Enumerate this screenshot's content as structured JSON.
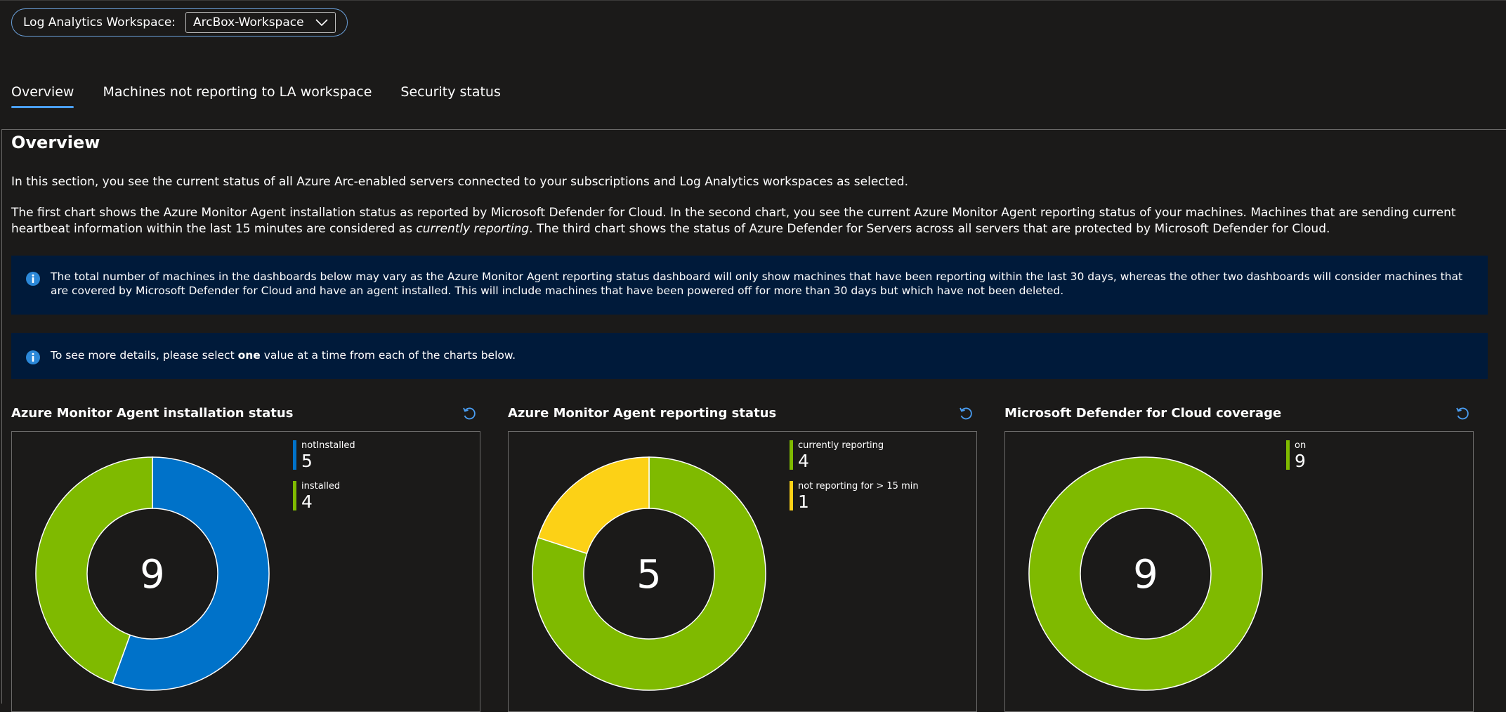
{
  "workspace": {
    "label": "Log Analytics Workspace:",
    "selected": "ArcBox-Workspace"
  },
  "tabs": [
    {
      "label": "Overview",
      "active": true
    },
    {
      "label": "Machines not reporting to LA workspace",
      "active": false
    },
    {
      "label": "Security status",
      "active": false
    }
  ],
  "overview": {
    "heading": "Overview",
    "para1": "In this section, you see the current status of all Azure Arc-enabled servers connected to your subscriptions and Log Analytics workspaces as selected.",
    "para2_part1": "The first chart shows the Azure Monitor Agent installation status as reported by Microsoft Defender for Cloud. In the second chart, you see the current Azure Monitor Agent reporting status of your machines. Machines that are sending current heartbeat information within the last 15 minutes are considered as ",
    "para2_em": "currently reporting",
    "para2_part2": ". The third chart shows the status of Azure Defender for Servers across all servers that are protected by Microsoft Defender for Cloud.",
    "info1": "The total number of machines in the dashboards below may vary as the Azure Monitor Agent reporting status dashboard will only show machines that have been reporting within the last 30 days, whereas the other two dashboards will consider machines that are covered by Microsoft Defender for Cloud and have an agent installed. This will include machines that have been powered off for more than 30 days but which have not been deleted.",
    "info2_part1": "To see more details, please select ",
    "info2_bold": "one",
    "info2_part2": " value at a time from each of the charts below."
  },
  "icons": {
    "info": "info-icon",
    "refresh": "refresh-icon",
    "dropdown": "chevron-down-icon"
  },
  "colors": {
    "blue": "#0072c9",
    "green": "#7fba00",
    "yellow": "#fcd116",
    "info_bg": "#001a3a",
    "tab_underline": "#4a9ff5"
  },
  "chart_data": [
    {
      "type": "pie",
      "title": "Azure Monitor Agent installation status",
      "center_label": "9",
      "categories": [
        "notInstalled",
        "installed"
      ],
      "values": [
        5,
        4
      ],
      "colors": [
        "#0072c9",
        "#7fba00"
      ]
    },
    {
      "type": "pie",
      "title": "Azure Monitor Agent reporting status",
      "center_label": "5",
      "categories": [
        "currently reporting",
        "not reporting for > 15 min"
      ],
      "values": [
        4,
        1
      ],
      "colors": [
        "#7fba00",
        "#fcd116"
      ]
    },
    {
      "type": "pie",
      "title": "Microsoft Defender for Cloud coverage",
      "center_label": "9",
      "categories": [
        "on"
      ],
      "values": [
        9
      ],
      "colors": [
        "#7fba00"
      ]
    }
  ]
}
